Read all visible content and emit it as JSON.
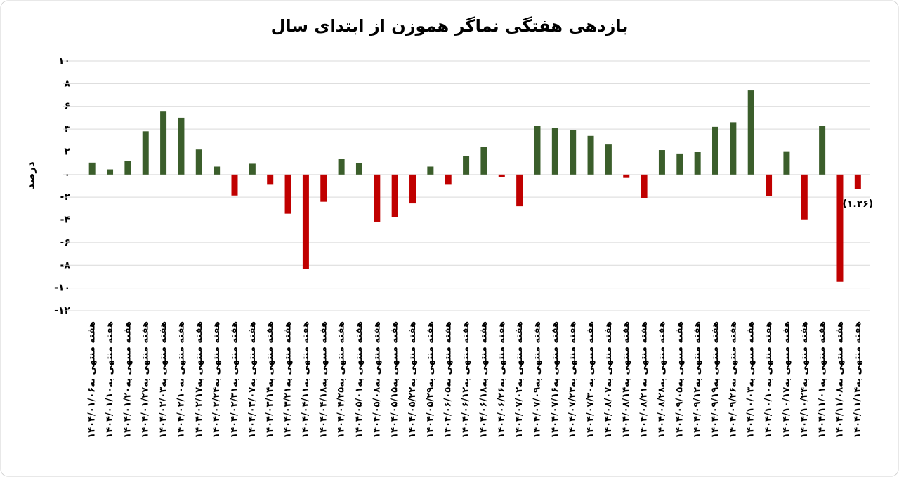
{
  "chart_data": {
    "type": "bar",
    "title": "بازدهی هفتگی نماگر هموزن از ابتدای سال",
    "y_label": "درصد",
    "categories": [
      "هفته منتهی به۱۴۰۴/۰۱/۰۶",
      "هفته منتهی به۱۴۰۴/۰۱/۱۰",
      "هفته منتهی به۱۴۰۴/۰۱/۲۰",
      "هفته منتهی به۱۴۰۴/۰۱/۲۷",
      "هفته منتهی به۱۴۰۴/۰۲/۰۳",
      "هفته منتهی به۱۴۰۴/۰۲/۱۰",
      "هفته منتهی به۱۴۰۴/۰۲/۱۷",
      "هفته منتهی به۱۴۰۴/۰۲/۲۴",
      "هفته منتهی به۱۴۰۴/۰۲/۳۱",
      "هفته منتهی به۱۴۰۴/۰۳/۰۷",
      "هفته منتهی به۱۴۰۴/۰۳/۱۴",
      "هفته منتهی به۱۴۰۴/۰۳/۲۱",
      "هفته منتهی به۱۴۰۴/۰۴/۱۱",
      "هفته منتهی به۱۴۰۴/۰۴/۱۸",
      "هفته منتهی به۱۴۰۴/۰۴/۲۵",
      "هفته منتهی به۱۴۰۴/۰۵/۰۱",
      "هفته منتهی به۱۴۰۴/۰۵/۰۸",
      "هفته منتهی به۱۴۰۴/۰۵/۱۵",
      "هفته منتهی به۱۴۰۴/۰۵/۲۲",
      "هفته منتهی به۱۴۰۴/۰۵/۲۹",
      "هفته منتهی به۱۴۰۴/۰۶/۰۵",
      "هفته منتهی به۱۴۰۴/۰۶/۱۲",
      "هفته منتهی به۱۴۰۴/۰۶/۱۸",
      "هفته منتهی به۱۴۰۴/۰۶/۲۶",
      "هفته منتهی به۱۴۰۴/۰۷/۰۲",
      "هفته منتهی به۱۴۰۴/۰۷/۰۹",
      "هفته منتهی به۱۴۰۴/۰۷/۱۶",
      "هفته منتهی به۱۴۰۴/۰۷/۲۳",
      "هفته منتهی به۱۴۰۴/۰۷/۳۰",
      "هفته منتهی به۱۴۰۴/۰۸/۰۷",
      "هفته منتهی به۱۴۰۴/۰۸/۱۴",
      "هفته منتهی به۱۴۰۴/۰۸/۲۱",
      "هفته منتهی به۱۴۰۴/۰۸/۲۸",
      "هفته منتهی به۱۴۰۴/۰۹/۰۵",
      "هفته منتهی به۱۴۰۴/۰۹/۱۲",
      "هفته منتهی به۱۴۰۴/۰۹/۱۹",
      "هفته منتهی به۱۴۰۴/۰۹/۲۶",
      "هفته منتهی به۱۴۰۴/۱۰/۰۳",
      "هفته منتهی به۱۴۰۴/۱۰/۱۰",
      "هفته منتهی به۱۴۰۴/۱۰/۱۷",
      "هفته منتهی به۱۴۰۴/۱۰/۲۴",
      "هفته منتهی به۱۴۰۴/۱۱/۰۱",
      "هفته منتهی به۱۴۰۴/۱۱/۰۸",
      "هفته منتهی به۱۴۰۴/۱۱/۱۴"
    ],
    "values": [
      1.05,
      0.45,
      1.2,
      3.8,
      5.6,
      5.0,
      2.2,
      0.7,
      -1.85,
      0.95,
      -0.9,
      -3.45,
      -8.3,
      -2.4,
      1.35,
      1.0,
      -4.15,
      -3.75,
      -2.55,
      0.7,
      -0.9,
      1.6,
      2.4,
      -0.25,
      -2.8,
      4.3,
      4.1,
      3.9,
      3.4,
      2.7,
      -0.3,
      -2.05,
      2.15,
      1.85,
      2.0,
      4.2,
      4.6,
      7.4,
      -1.9,
      2.05,
      -3.95,
      4.3,
      -9.45,
      -1.26
    ],
    "value_labels": [
      null,
      null,
      null,
      null,
      null,
      null,
      null,
      null,
      null,
      null,
      null,
      null,
      null,
      null,
      null,
      null,
      null,
      null,
      null,
      null,
      null,
      null,
      null,
      null,
      null,
      null,
      null,
      null,
      null,
      null,
      null,
      null,
      null,
      null,
      null,
      null,
      null,
      null,
      null,
      null,
      null,
      null,
      null,
      "(۱.۲۶)"
    ],
    "colors": {
      "positive": "#3b5e2b",
      "negative": "#c00000"
    },
    "ylim": [
      -12,
      10
    ],
    "yticks": [
      {
        "value": 10,
        "label": "۱۰"
      },
      {
        "value": 8,
        "label": "۸"
      },
      {
        "value": 6,
        "label": "۶"
      },
      {
        "value": 4,
        "label": "۴"
      },
      {
        "value": 2,
        "label": "۲"
      },
      {
        "value": 0,
        "label": "۰"
      },
      {
        "value": -2,
        "label": "-۲"
      },
      {
        "value": -4,
        "label": "-۴"
      },
      {
        "value": -6,
        "label": "-۶"
      },
      {
        "value": -8,
        "label": "-۸"
      },
      {
        "value": -10,
        "label": "-۱۰"
      },
      {
        "value": -12,
        "label": "-۱۲"
      }
    ],
    "grid": true
  }
}
